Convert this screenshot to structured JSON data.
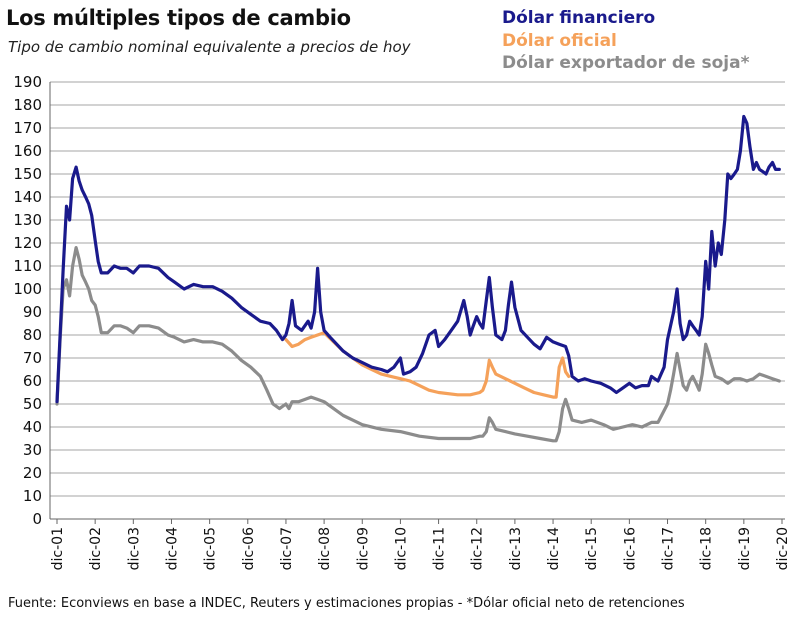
{
  "chart_data": {
    "type": "line",
    "title": "Los múltiples tipos de cambio",
    "subtitle": "Tipo de cambio nominal equivalente a precios de hoy",
    "source": "Fuente: Econviews en base a  INDEC, Reuters y estimaciones propias -  *Dólar oficial neto de retenciones",
    "xlabel": "",
    "ylabel": "",
    "ylim": [
      0,
      190
    ],
    "yticks": [
      0,
      10,
      20,
      30,
      40,
      50,
      60,
      70,
      80,
      90,
      100,
      110,
      120,
      130,
      140,
      150,
      160,
      170,
      180,
      190
    ],
    "xlim": [
      2001.92,
      2020.92
    ],
    "xticks": [
      {
        "x": 2001.92,
        "label": "dic-01"
      },
      {
        "x": 2002.92,
        "label": "dic-02"
      },
      {
        "x": 2003.92,
        "label": "dic-03"
      },
      {
        "x": 2004.92,
        "label": "dic-04"
      },
      {
        "x": 2005.92,
        "label": "dic-05"
      },
      {
        "x": 2006.92,
        "label": "dic-06"
      },
      {
        "x": 2007.92,
        "label": "dic-07"
      },
      {
        "x": 2008.92,
        "label": "dic-08"
      },
      {
        "x": 2009.92,
        "label": "dic-09"
      },
      {
        "x": 2010.92,
        "label": "dic-10"
      },
      {
        "x": 2011.92,
        "label": "dic-11"
      },
      {
        "x": 2012.92,
        "label": "dic-12"
      },
      {
        "x": 2013.92,
        "label": "dic-13"
      },
      {
        "x": 2014.92,
        "label": "dic-14"
      },
      {
        "x": 2015.92,
        "label": "dic-15"
      },
      {
        "x": 2016.92,
        "label": "dic-16"
      },
      {
        "x": 2017.92,
        "label": "dic-17"
      },
      {
        "x": 2018.92,
        "label": "dic-18"
      },
      {
        "x": 2019.92,
        "label": "dic-19"
      },
      {
        "x": 2020.92,
        "label": "dic-20"
      }
    ],
    "grid": true,
    "legend_position": "top-right",
    "series": [
      {
        "name": "Dólar exportador de soja*",
        "color": "#8c8c8c",
        "points": [
          [
            2001.92,
            50
          ],
          [
            2002.0,
            78
          ],
          [
            2002.08,
            100
          ],
          [
            2002.17,
            104
          ],
          [
            2002.25,
            97
          ],
          [
            2002.33,
            110
          ],
          [
            2002.42,
            118
          ],
          [
            2002.5,
            113
          ],
          [
            2002.58,
            106
          ],
          [
            2002.67,
            103
          ],
          [
            2002.75,
            100
          ],
          [
            2002.83,
            95
          ],
          [
            2002.92,
            93
          ],
          [
            2003.0,
            88
          ],
          [
            2003.08,
            81
          ],
          [
            2003.25,
            81
          ],
          [
            2003.42,
            84
          ],
          [
            2003.58,
            84
          ],
          [
            2003.75,
            83
          ],
          [
            2003.92,
            81
          ],
          [
            2004.08,
            84
          ],
          [
            2004.33,
            84
          ],
          [
            2004.58,
            83
          ],
          [
            2004.83,
            80
          ],
          [
            2005.0,
            79
          ],
          [
            2005.25,
            77
          ],
          [
            2005.5,
            78
          ],
          [
            2005.75,
            77
          ],
          [
            2006.0,
            77
          ],
          [
            2006.25,
            76
          ],
          [
            2006.5,
            73
          ],
          [
            2006.75,
            69
          ],
          [
            2007.0,
            66
          ],
          [
            2007.25,
            62
          ],
          [
            2007.42,
            56
          ],
          [
            2007.58,
            50
          ],
          [
            2007.75,
            48
          ],
          [
            2007.92,
            50
          ],
          [
            2008.0,
            48
          ],
          [
            2008.08,
            51
          ],
          [
            2008.25,
            51
          ],
          [
            2008.42,
            52
          ],
          [
            2008.58,
            53
          ],
          [
            2008.75,
            52
          ],
          [
            2008.92,
            51
          ],
          [
            2009.17,
            48
          ],
          [
            2009.42,
            45
          ],
          [
            2009.67,
            43
          ],
          [
            2009.92,
            41
          ],
          [
            2010.42,
            39
          ],
          [
            2010.92,
            38
          ],
          [
            2011.42,
            36
          ],
          [
            2011.92,
            35
          ],
          [
            2012.42,
            35
          ],
          [
            2012.75,
            35
          ],
          [
            2013.0,
            36
          ],
          [
            2013.08,
            36
          ],
          [
            2013.17,
            38
          ],
          [
            2013.25,
            44
          ],
          [
            2013.33,
            42
          ],
          [
            2013.42,
            39
          ],
          [
            2013.67,
            38
          ],
          [
            2013.92,
            37
          ],
          [
            2014.25,
            36
          ],
          [
            2014.58,
            35
          ],
          [
            2014.92,
            34
          ],
          [
            2015.0,
            34
          ],
          [
            2015.08,
            38
          ],
          [
            2015.17,
            48
          ],
          [
            2015.25,
            52
          ],
          [
            2015.33,
            48
          ],
          [
            2015.42,
            43
          ],
          [
            2015.67,
            42
          ],
          [
            2015.92,
            43
          ],
          [
            2016.25,
            41
          ],
          [
            2016.5,
            39
          ],
          [
            2016.75,
            40
          ],
          [
            2017.0,
            41
          ],
          [
            2017.25,
            40
          ],
          [
            2017.5,
            42
          ],
          [
            2017.67,
            42
          ],
          [
            2017.92,
            50
          ],
          [
            2018.0,
            56
          ],
          [
            2018.08,
            63
          ],
          [
            2018.17,
            72
          ],
          [
            2018.25,
            65
          ],
          [
            2018.33,
            58
          ],
          [
            2018.42,
            56
          ],
          [
            2018.5,
            60
          ],
          [
            2018.58,
            62
          ],
          [
            2018.67,
            59
          ],
          [
            2018.75,
            56
          ],
          [
            2018.83,
            63
          ],
          [
            2018.92,
            76
          ],
          [
            2019.0,
            72
          ],
          [
            2019.08,
            67
          ],
          [
            2019.17,
            62
          ],
          [
            2019.33,
            61
          ],
          [
            2019.5,
            59
          ],
          [
            2019.67,
            61
          ],
          [
            2019.83,
            61
          ],
          [
            2020.0,
            60
          ],
          [
            2020.17,
            61
          ],
          [
            2020.33,
            63
          ],
          [
            2020.5,
            62
          ],
          [
            2020.67,
            61
          ],
          [
            2020.85,
            60
          ]
        ]
      },
      {
        "name": "Dólar oficial",
        "color": "#f5a15a",
        "points": [
          [
            2007.92,
            78
          ],
          [
            2008.08,
            75
          ],
          [
            2008.25,
            76
          ],
          [
            2008.42,
            78
          ],
          [
            2008.58,
            79
          ],
          [
            2008.75,
            80
          ],
          [
            2008.92,
            81
          ],
          [
            2009.17,
            77
          ],
          [
            2009.42,
            73
          ],
          [
            2009.67,
            70
          ],
          [
            2009.92,
            67
          ],
          [
            2010.17,
            65
          ],
          [
            2010.42,
            63
          ],
          [
            2010.67,
            62
          ],
          [
            2010.92,
            61
          ],
          [
            2011.17,
            60
          ],
          [
            2011.42,
            58
          ],
          [
            2011.67,
            56
          ],
          [
            2011.92,
            55
          ],
          [
            2012.42,
            54
          ],
          [
            2012.75,
            54
          ],
          [
            2013.0,
            55
          ],
          [
            2013.08,
            56
          ],
          [
            2013.17,
            60
          ],
          [
            2013.25,
            69
          ],
          [
            2013.33,
            66
          ],
          [
            2013.42,
            63
          ],
          [
            2013.67,
            61
          ],
          [
            2013.92,
            59
          ],
          [
            2014.17,
            57
          ],
          [
            2014.42,
            55
          ],
          [
            2014.67,
            54
          ],
          [
            2014.92,
            53
          ],
          [
            2015.0,
            53
          ],
          [
            2015.08,
            66
          ],
          [
            2015.17,
            70
          ],
          [
            2015.25,
            64
          ],
          [
            2015.33,
            62
          ]
        ]
      },
      {
        "name": "Dólar financiero",
        "color": "#1a1a8c",
        "points": [
          [
            2001.92,
            51
          ],
          [
            2002.0,
            80
          ],
          [
            2002.08,
            108
          ],
          [
            2002.17,
            136
          ],
          [
            2002.25,
            130
          ],
          [
            2002.33,
            148
          ],
          [
            2002.42,
            153
          ],
          [
            2002.5,
            147
          ],
          [
            2002.58,
            143
          ],
          [
            2002.67,
            140
          ],
          [
            2002.75,
            137
          ],
          [
            2002.83,
            132
          ],
          [
            2002.92,
            121
          ],
          [
            2003.0,
            112
          ],
          [
            2003.08,
            107
          ],
          [
            2003.25,
            107
          ],
          [
            2003.42,
            110
          ],
          [
            2003.58,
            109
          ],
          [
            2003.75,
            109
          ],
          [
            2003.92,
            107
          ],
          [
            2004.08,
            110
          ],
          [
            2004.33,
            110
          ],
          [
            2004.58,
            109
          ],
          [
            2004.83,
            105
          ],
          [
            2005.0,
            103
          ],
          [
            2005.25,
            100
          ],
          [
            2005.5,
            102
          ],
          [
            2005.75,
            101
          ],
          [
            2006.0,
            101
          ],
          [
            2006.25,
            99
          ],
          [
            2006.5,
            96
          ],
          [
            2006.75,
            92
          ],
          [
            2007.0,
            89
          ],
          [
            2007.25,
            86
          ],
          [
            2007.5,
            85
          ],
          [
            2007.67,
            82
          ],
          [
            2007.83,
            78
          ],
          [
            2007.92,
            80
          ],
          [
            2008.0,
            85
          ],
          [
            2008.08,
            95
          ],
          [
            2008.17,
            84
          ],
          [
            2008.33,
            82
          ],
          [
            2008.5,
            86
          ],
          [
            2008.58,
            83
          ],
          [
            2008.67,
            90
          ],
          [
            2008.75,
            109
          ],
          [
            2008.83,
            90
          ],
          [
            2008.92,
            82
          ],
          [
            2009.08,
            79
          ],
          [
            2009.25,
            76
          ],
          [
            2009.42,
            73
          ],
          [
            2009.67,
            70
          ],
          [
            2009.92,
            68
          ],
          [
            2010.17,
            66
          ],
          [
            2010.42,
            65
          ],
          [
            2010.58,
            64
          ],
          [
            2010.75,
            66
          ],
          [
            2010.92,
            70
          ],
          [
            2011.0,
            63
          ],
          [
            2011.17,
            64
          ],
          [
            2011.33,
            66
          ],
          [
            2011.5,
            72
          ],
          [
            2011.67,
            80
          ],
          [
            2011.83,
            82
          ],
          [
            2011.92,
            75
          ],
          [
            2012.08,
            78
          ],
          [
            2012.25,
            82
          ],
          [
            2012.42,
            86
          ],
          [
            2012.58,
            95
          ],
          [
            2012.67,
            88
          ],
          [
            2012.75,
            80
          ],
          [
            2012.83,
            84
          ],
          [
            2012.92,
            88
          ],
          [
            2013.0,
            85
          ],
          [
            2013.08,
            83
          ],
          [
            2013.17,
            95
          ],
          [
            2013.25,
            105
          ],
          [
            2013.33,
            92
          ],
          [
            2013.42,
            80
          ],
          [
            2013.58,
            78
          ],
          [
            2013.67,
            82
          ],
          [
            2013.75,
            93
          ],
          [
            2013.83,
            103
          ],
          [
            2013.92,
            92
          ],
          [
            2014.08,
            82
          ],
          [
            2014.25,
            79
          ],
          [
            2014.42,
            76
          ],
          [
            2014.58,
            74
          ],
          [
            2014.75,
            79
          ],
          [
            2014.92,
            77
          ],
          [
            2015.08,
            76
          ],
          [
            2015.25,
            75
          ],
          [
            2015.33,
            71
          ],
          [
            2015.42,
            62
          ],
          [
            2015.58,
            60
          ],
          [
            2015.75,
            61
          ],
          [
            2015.92,
            60
          ],
          [
            2016.17,
            59
          ],
          [
            2016.42,
            57
          ],
          [
            2016.58,
            55
          ],
          [
            2016.75,
            57
          ],
          [
            2016.92,
            59
          ],
          [
            2017.08,
            57
          ],
          [
            2017.25,
            58
          ],
          [
            2017.42,
            58
          ],
          [
            2017.5,
            62
          ],
          [
            2017.67,
            60
          ],
          [
            2017.83,
            66
          ],
          [
            2017.92,
            78
          ],
          [
            2018.08,
            90
          ],
          [
            2018.17,
            100
          ],
          [
            2018.25,
            85
          ],
          [
            2018.33,
            78
          ],
          [
            2018.42,
            80
          ],
          [
            2018.5,
            86
          ],
          [
            2018.58,
            84
          ],
          [
            2018.67,
            82
          ],
          [
            2018.75,
            80
          ],
          [
            2018.83,
            88
          ],
          [
            2018.92,
            112
          ],
          [
            2019.0,
            100
          ],
          [
            2019.08,
            125
          ],
          [
            2019.17,
            110
          ],
          [
            2019.25,
            120
          ],
          [
            2019.33,
            115
          ],
          [
            2019.42,
            130
          ],
          [
            2019.5,
            150
          ],
          [
            2019.58,
            148
          ],
          [
            2019.67,
            150
          ],
          [
            2019.75,
            152
          ],
          [
            2019.83,
            160
          ],
          [
            2019.92,
            175
          ],
          [
            2020.0,
            172
          ],
          [
            2020.08,
            162
          ],
          [
            2020.17,
            152
          ],
          [
            2020.25,
            155
          ],
          [
            2020.33,
            152
          ],
          [
            2020.42,
            151
          ],
          [
            2020.5,
            150
          ],
          [
            2020.58,
            153
          ],
          [
            2020.67,
            155
          ],
          [
            2020.75,
            152
          ],
          [
            2020.85,
            152
          ]
        ]
      }
    ]
  }
}
